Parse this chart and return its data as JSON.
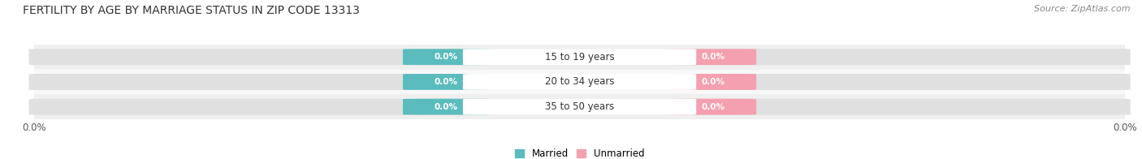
{
  "title": "FERTILITY BY AGE BY MARRIAGE STATUS IN ZIP CODE 13313",
  "source": "Source: ZipAtlas.com",
  "age_groups": [
    "15 to 19 years",
    "20 to 34 years",
    "35 to 50 years"
  ],
  "married_values": [
    0.0,
    0.0,
    0.0
  ],
  "unmarried_values": [
    0.0,
    0.0,
    0.0
  ],
  "married_color": "#5bbcbe",
  "unmarried_color": "#f4a0b0",
  "bar_bg_color": "#e0e0e0",
  "row_bg_odd": "#efefef",
  "row_bg_even": "#f8f8f8",
  "axis_label_left": "0.0%",
  "axis_label_right": "0.0%",
  "background_color": "#ffffff",
  "title_fontsize": 10,
  "source_fontsize": 8,
  "legend_married": "Married",
  "legend_unmarried": "Unmarried"
}
